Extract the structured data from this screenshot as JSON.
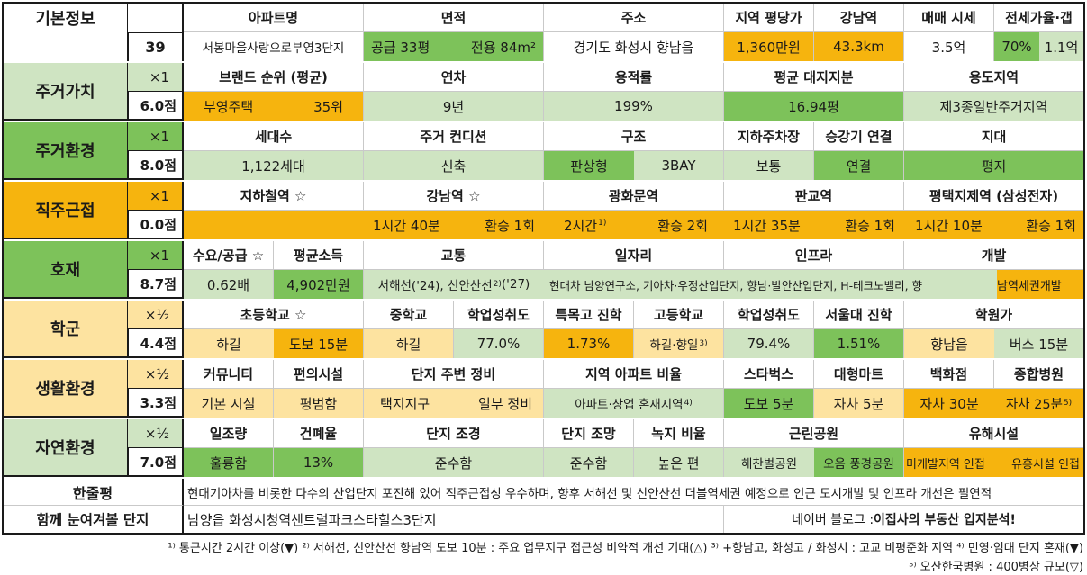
{
  "basic": {
    "title": "기본정보",
    "index": "39",
    "headers": [
      "아파트명",
      "면적",
      "주소",
      "지역 평당가",
      "강남역",
      "매매 시세",
      "전세가율·갭"
    ],
    "apartment": "서봉마을사랑으로부영3단지",
    "area_supply": "공급 33평",
    "area_exclusive": "전용 84m²",
    "address": "경기도 화성시 향남읍",
    "price_per_pyeong": "1,360만원",
    "gangnam_distance": "43.3km",
    "sale_price": "3.5억",
    "jeonse_ratio": "70%",
    "gap": "1.1억"
  },
  "sections": {
    "living_value": {
      "name": "주거가치",
      "mult": "×1",
      "score": "6.0점",
      "headers": [
        "브랜드 순위 (평균)",
        "연차",
        "용적률",
        "평균 대지지분",
        "용도지역"
      ],
      "brand": "부영주택",
      "brand_rank": "35위",
      "age": "9년",
      "far": "199%",
      "land_share": "16.94평",
      "zoning": "제3종일반주거지역"
    },
    "living_env": {
      "name": "주거환경",
      "mult": "×1",
      "score": "8.0점",
      "headers": [
        "세대수",
        "주거 컨디션",
        "구조",
        "지하주차장",
        "승강기 연결",
        "지대"
      ],
      "households": "1,122세대",
      "condition": "신축",
      "structure": "판상형",
      "bay": "3BAY",
      "parking": "보통",
      "elevator": "연결",
      "terrain": "평지"
    },
    "commute": {
      "name": "직주근접",
      "mult": "×1",
      "score": "0.0점",
      "headers": [
        "지하철역 ☆",
        "강남역 ☆",
        "광화문역",
        "판교역",
        "평택지제역 (삼성전자)"
      ],
      "gangnam_time": "1시간 40분",
      "gangnam_transfer": "환승 1회",
      "gwanghwamun_time": "2시간",
      "gwanghwamun_note": "1)",
      "gwanghwamun_transfer": "환승 2회",
      "pangyo_time": "1시간 35분",
      "pangyo_transfer": "환승 1회",
      "pyeongtaek_time": "1시간 10분",
      "pyeongtaek_transfer": "환승 1회"
    },
    "development": {
      "name": "호재",
      "mult": "×1",
      "score": "8.7점",
      "headers": [
        "수요/공급 ☆",
        "평균소득",
        "교통",
        "일자리",
        "인프라",
        "개발"
      ],
      "supply_demand": "0.62배",
      "income": "4,902만원",
      "transport": "서해선('24), 신안산선",
      "transport_note": "2)",
      "transport_tail": " ('27)",
      "jobs": "현대차 남양연구소, 기아차·우정산업단지, 향남·발안산업단지, H-테크노밸리, 향",
      "infra_dev": "남역세권개발"
    },
    "school": {
      "name": "학군",
      "mult": "×½",
      "score": "4.4점",
      "headers": [
        "초등학교 ☆",
        "중학교",
        "학업성취도",
        "특목고 진학",
        "고등학교",
        "학업성취도",
        "서울대 진학",
        "학원가"
      ],
      "elementary": "하길",
      "elementary_dist": "도보 15분",
      "middle": "하길",
      "middle_score": "77.0%",
      "special_high": "1.73%",
      "high": "하길·향일",
      "high_note": "3)",
      "high_score": "79.4%",
      "snu": "1.51%",
      "academy": "향남읍",
      "academy_dist": "버스 15분"
    },
    "life_env": {
      "name": "생활환경",
      "mult": "×½",
      "score": "3.3점",
      "headers": [
        "커뮤니티",
        "편의시설",
        "단지 주변 정비",
        "지역 아파트 비율",
        "스타벅스",
        "대형마트",
        "백화점",
        "종합병원"
      ],
      "community": "기본 시설",
      "convenience": "평범함",
      "surround_a": "택지지구",
      "surround_b": "일부 정비",
      "apt_ratio": "아파트·상업 혼재지역",
      "apt_ratio_note": "4)",
      "starbucks": "도보 5분",
      "mart": "자차 5분",
      "dept": "자차 30분",
      "hospital": "자차 25분",
      "hospital_note": "5)"
    },
    "nature": {
      "name": "자연환경",
      "mult": "×½",
      "score": "7.0점",
      "headers": [
        "일조량",
        "건폐율",
        "단지 조경",
        "단지 조망",
        "녹지 비율",
        "근린공원",
        "유해시설"
      ],
      "sunlight": "훌륭함",
      "bcr": "13%",
      "landscape": "준수함",
      "view": "준수함",
      "green": "높은 편",
      "park_a": "해찬벌공원",
      "park_b": "오음 풍경공원",
      "hazard_a": "미개발지역 인접",
      "hazard_b": "유흥시설 인접"
    }
  },
  "summary": {
    "label": "한줄평",
    "text": "현대기아차를 비롯한 다수의 산업단지 포진해 있어 직주근접성 우수하며, 향후 서해선 및 신안산선 더블역세권 예정으로 인근 도시개발 및 인프라 개선은 필연적"
  },
  "related": {
    "label": "함께 눈여겨볼 단지",
    "text": "남양읍 화성시청역센트럴파크스타힐스3단지",
    "blog_prefix": "네이버 블로그 : ",
    "blog_name": "이집사의 부동산 입지분석!"
  },
  "footnotes": {
    "line1": "¹⁾ 통근시간 2시간 이상(▼) ²⁾ 서해선, 신안산선 향남역 도보 10분 : 주요 업무지구 접근성 비약적 개선 기대(△) ³⁾ +향남고, 화성고 / 화성시 : 고교 비평준화 지역 ⁴⁾ 민영·임대 단지 혼재(▼)",
    "line2": "⁵⁾ 오산한국병원 : 400병상 규모(▽)"
  }
}
